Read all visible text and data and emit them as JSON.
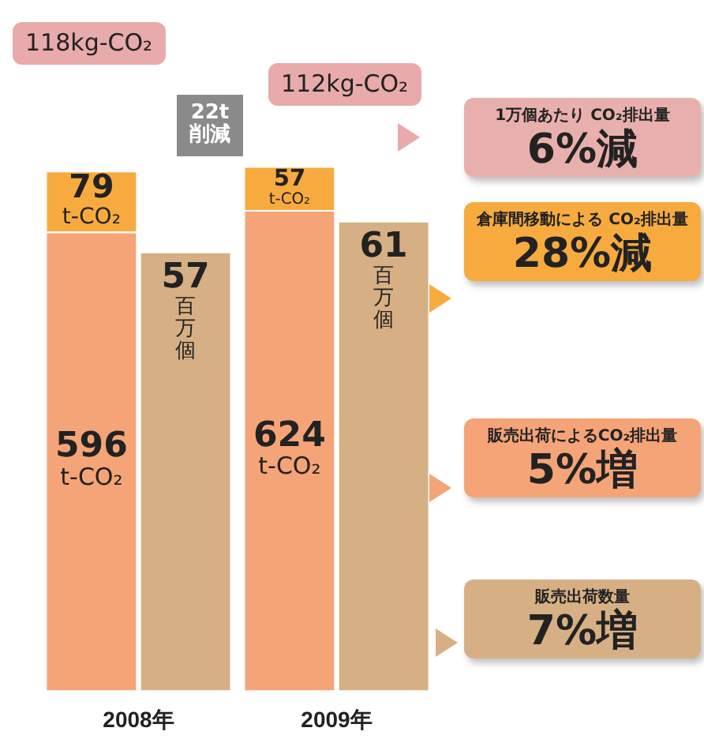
{
  "chart_data": {
    "type": "bar",
    "stacked": true,
    "categories": [
      "2008年",
      "2009年"
    ],
    "series": [
      {
        "color": "#f5a477",
        "values": [
          596,
          624
        ],
        "value_labels": [
          "596\nt-CO₂",
          "624\nt-CO₂"
        ]
      },
      {
        "color": "#f7ab3f",
        "values": [
          79,
          57
        ],
        "value_labels": [
          "79\nt-CO₂",
          "57\nt-CO₂"
        ]
      },
      {
        "color": "#d6b084",
        "values": [
          57,
          61
        ],
        "axis": "y2",
        "value_labels": [
          "57\n百万個",
          "61\n百万個"
        ]
      }
    ],
    "tick_labels": "x",
    "annotations": [
      "118kg-CO₂",
      "112kg-CO₂",
      "22t\n削減",
      "1万個あたり CO₂排出量",
      "6%減",
      "倉庫間移動による CO₂排出量",
      "28%減",
      "販売出荷によるCO₂排出量",
      "5%増",
      "販売出荷数量",
      "7%増"
    ]
  }
}
